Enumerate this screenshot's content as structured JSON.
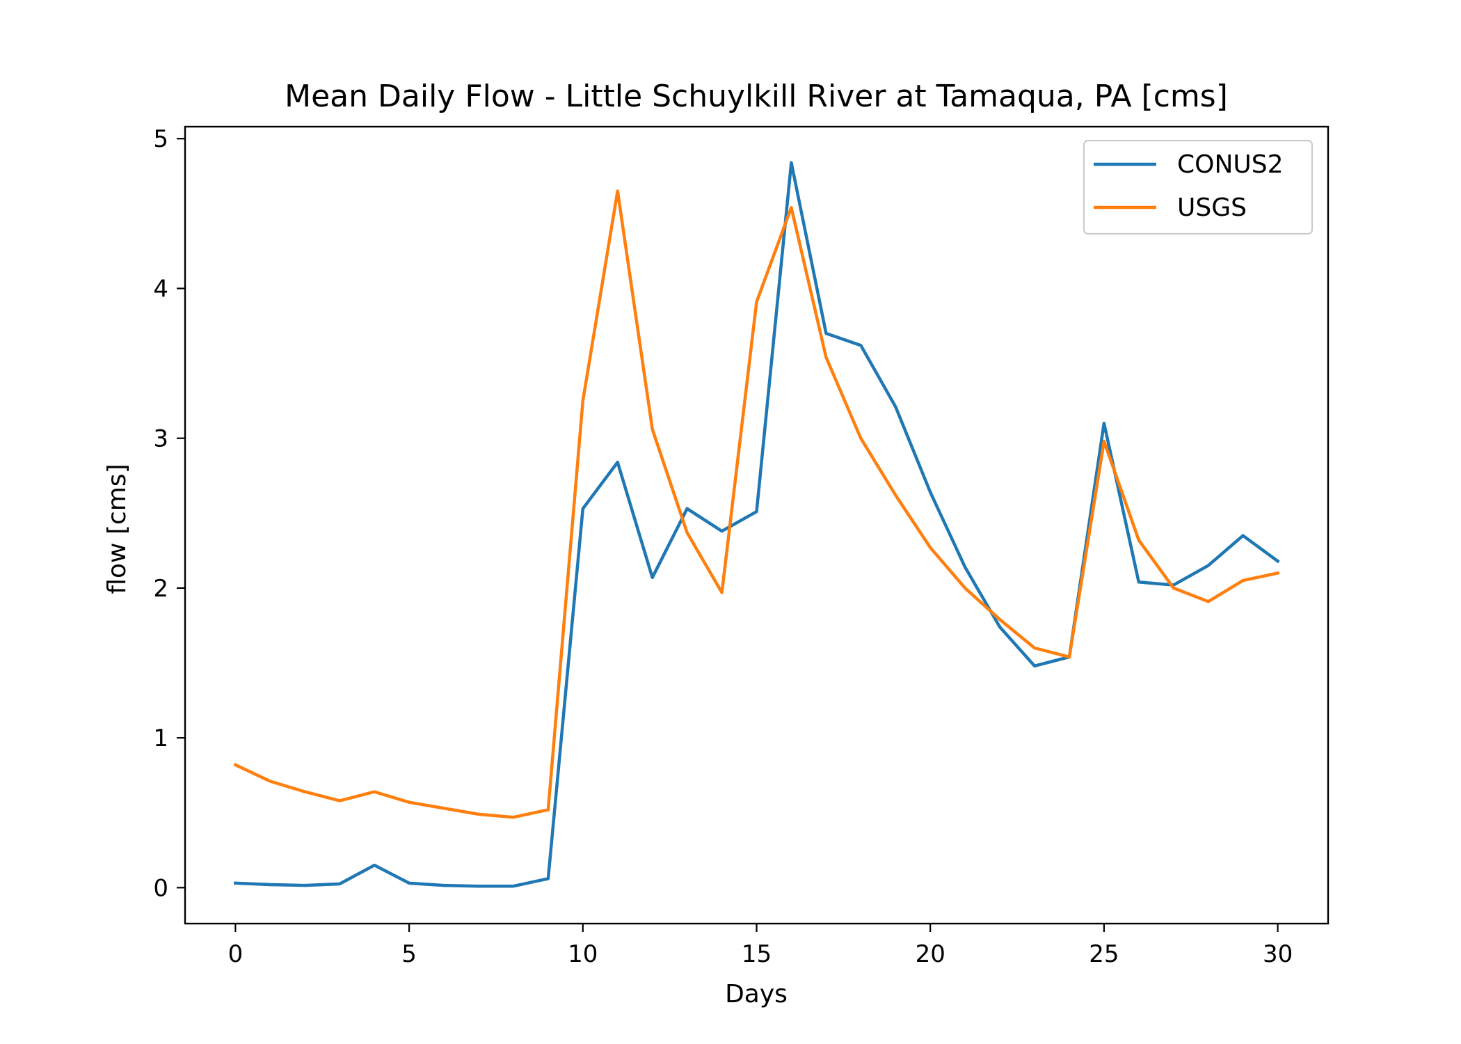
{
  "chart_data": {
    "type": "line",
    "title": "Mean Daily Flow - Little Schuylkill River at Tamaqua, PA [cms]",
    "xlabel": "Days",
    "ylabel": "flow [cms]",
    "xlim": [
      -1.45,
      31.45
    ],
    "ylim": [
      -0.24,
      5.08
    ],
    "xticks": [
      0,
      5,
      10,
      15,
      20,
      25,
      30
    ],
    "yticks": [
      0,
      1,
      2,
      3,
      4,
      5
    ],
    "grid": false,
    "legend_position": "top-right",
    "x": [
      0,
      1,
      2,
      3,
      4,
      5,
      6,
      7,
      8,
      9,
      10,
      11,
      12,
      13,
      14,
      15,
      16,
      17,
      18,
      19,
      20,
      21,
      22,
      23,
      24,
      25,
      26,
      27,
      28,
      29,
      30
    ],
    "series": [
      {
        "name": "CONUS2",
        "color": "#1f77b4",
        "values": [
          0.03,
          0.02,
          0.015,
          0.025,
          0.15,
          0.03,
          0.015,
          0.01,
          0.01,
          0.06,
          2.53,
          2.84,
          2.07,
          2.53,
          2.38,
          2.51,
          4.84,
          3.7,
          3.62,
          3.21,
          2.64,
          2.14,
          1.74,
          1.48,
          1.54,
          3.1,
          2.04,
          2.02,
          2.15,
          2.35,
          2.18
        ]
      },
      {
        "name": "USGS",
        "color": "#ff7f0e",
        "values": [
          0.82,
          0.71,
          0.64,
          0.58,
          0.64,
          0.57,
          0.53,
          0.49,
          0.47,
          0.52,
          3.25,
          4.65,
          3.06,
          2.37,
          1.97,
          3.91,
          4.54,
          3.54,
          3.0,
          2.62,
          2.27,
          2.0,
          1.79,
          1.6,
          1.54,
          2.98,
          2.32,
          2.0,
          1.91,
          2.05,
          2.1
        ]
      }
    ]
  }
}
